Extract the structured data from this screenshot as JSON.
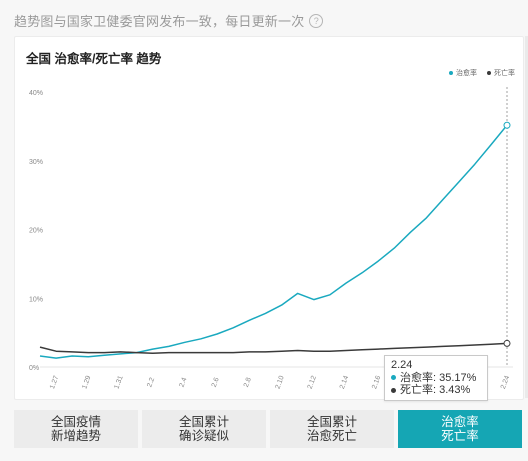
{
  "note": {
    "text": "趋势图与国家卫健委官网发布一致，每日更新一次",
    "icon": "question-circle-icon"
  },
  "card": {
    "title": "全国 治愈率/死亡率 趋势"
  },
  "tooltip": {
    "date": "2.24",
    "rows": [
      {
        "label": "治愈率: 35.17%",
        "color": "#1aa9bf"
      },
      {
        "label": "死亡率: 3.43%",
        "color": "#3a3a3a"
      }
    ]
  },
  "tabs": [
    {
      "line1": "全国疫情",
      "line2": "新增趋势",
      "active": false
    },
    {
      "line1": "全国累计",
      "line2": "确诊疑似",
      "active": false
    },
    {
      "line1": "全国累计",
      "line2": "治愈死亡",
      "active": false
    },
    {
      "line1": "治愈率",
      "line2": "死亡率",
      "active": true
    }
  ],
  "colors": {
    "cure": "#1aa9bf",
    "death": "#3a3a3a",
    "accent": "#15a6b4"
  },
  "chart_data": {
    "type": "line",
    "title": "全国 治愈率/死亡率 趋势",
    "x": [
      "1.26",
      "1.27",
      "1.28",
      "1.29",
      "1.30",
      "1.31",
      "2.1",
      "2.2",
      "2.3",
      "2.4",
      "2.5",
      "2.6",
      "2.7",
      "2.8",
      "2.9",
      "2.10",
      "2.11",
      "2.12",
      "2.13",
      "2.14",
      "2.15",
      "2.16",
      "2.17",
      "2.18",
      "2.19",
      "2.20",
      "2.21",
      "2.22",
      "2.23",
      "2.24"
    ],
    "x_tick_labels": [
      "1.27",
      "1.29",
      "1.31",
      "2.2",
      "2.4",
      "2.6",
      "2.8",
      "2.10",
      "2.12",
      "2.14",
      "2.16",
      "2.18",
      "2.20",
      "2.22",
      "2.24"
    ],
    "y_tick_labels": [
      "0%",
      "10%",
      "20%",
      "30%",
      "40%"
    ],
    "ylim": [
      0,
      40
    ],
    "grid": false,
    "legend_position": "top-right",
    "series": [
      {
        "name": "治愈率",
        "color": "#1aa9bf",
        "values": [
          1.6,
          1.3,
          1.6,
          1.5,
          1.7,
          1.9,
          2.1,
          2.6,
          3.0,
          3.6,
          4.1,
          4.8,
          5.7,
          6.8,
          7.8,
          9.0,
          10.7,
          9.8,
          10.5,
          12.2,
          13.7,
          15.4,
          17.3,
          19.6,
          21.7,
          24.3,
          26.9,
          29.5,
          32.3,
          35.17
        ]
      },
      {
        "name": "死亡率",
        "color": "#3a3a3a",
        "values": [
          2.9,
          2.3,
          2.2,
          2.1,
          2.1,
          2.2,
          2.1,
          2.0,
          2.1,
          2.1,
          2.1,
          2.1,
          2.1,
          2.2,
          2.2,
          2.3,
          2.4,
          2.3,
          2.3,
          2.4,
          2.5,
          2.6,
          2.7,
          2.8,
          2.9,
          3.0,
          3.1,
          3.2,
          3.3,
          3.43
        ]
      }
    ]
  }
}
